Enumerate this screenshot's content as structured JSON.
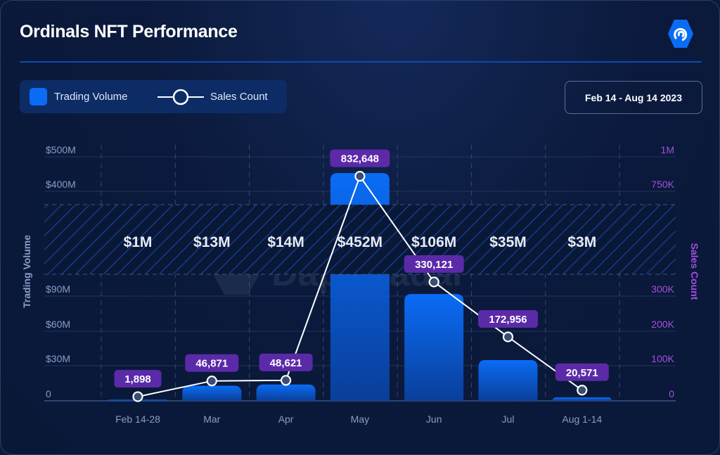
{
  "header": {
    "title": "Ordinals NFT Performance",
    "logo": "dappradar-logo-icon"
  },
  "legend": {
    "bars": "Trading Volume",
    "line": "Sales Count"
  },
  "date_range": "Feb 14 - Aug 14 2023",
  "watermark": "DappRadar",
  "colors": {
    "bar": "#0a6cf5",
    "line": "#ffffff",
    "label_bg": "#5b2aa8",
    "right_axis": "#a64de0",
    "left_axis": "#8a9cc6"
  },
  "chart_data": {
    "type": "bar",
    "categories": [
      "Feb 14-28",
      "Mar",
      "Apr",
      "May",
      "Jun",
      "Jul",
      "Aug 1-14"
    ],
    "xlabel": "",
    "ylabel": "Trading Volume",
    "y2label": "Sales Count",
    "broken_axis": true,
    "y_ticks_lower": [
      "0",
      "$30M",
      "$60M",
      "$90M"
    ],
    "y_ticks_upper": [
      "$400M",
      "$500M"
    ],
    "y2_ticks_lower": [
      "0",
      "100K",
      "200K",
      "300K"
    ],
    "y2_ticks_upper": [
      "750K",
      "1M"
    ],
    "grid": true,
    "series": [
      {
        "name": "Trading Volume",
        "type": "bar",
        "values": [
          1,
          13,
          14,
          452,
          106,
          35,
          3
        ],
        "labels": [
          "$1M",
          "$13M",
          "$14M",
          "$452M",
          "$106M",
          "$35M",
          "$3M"
        ]
      },
      {
        "name": "Sales Count",
        "type": "line",
        "values": [
          1898,
          46871,
          48621,
          832648,
          330121,
          172956,
          20571
        ],
        "labels": [
          "1,898",
          "46,871",
          "48,621",
          "832,648",
          "330,121",
          "172,956",
          "20,571"
        ]
      }
    ],
    "legend": "top-left"
  }
}
